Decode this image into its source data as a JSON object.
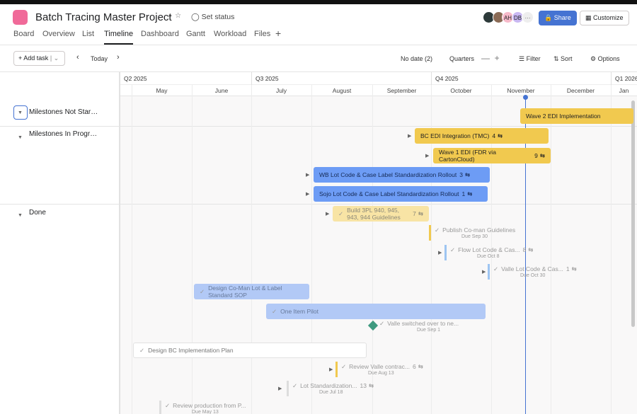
{
  "header": {
    "title": "Batch Tracing Master Project",
    "set_status": "Set status",
    "avatars": [
      "AH",
      "DB"
    ],
    "share": "Share",
    "customize": "Customize"
  },
  "tabs": [
    "Board",
    "Overview",
    "List",
    "Timeline",
    "Dashboard",
    "Gantt",
    "Workload",
    "Files"
  ],
  "toolbar": {
    "add_task": "Add task",
    "today": "Today",
    "no_date": "No date (2)",
    "quarters": "Quarters",
    "filter": "Filter",
    "sort": "Sort",
    "options": "Options"
  },
  "timeline": {
    "quarters": [
      "Q2 2025",
      "Q3 2025",
      "Q4 2025",
      "Q1 2026"
    ],
    "months": [
      "May",
      "June",
      "July",
      "August",
      "September",
      "October",
      "November",
      "December",
      "Jan"
    ]
  },
  "sections": [
    "Milestones Not Started",
    "Milestones In Progress",
    "Done"
  ],
  "tasks": [
    {
      "name": "Wave 2 EDI Implementation"
    },
    {
      "name": "BC EDI Integration (TMC)",
      "subtasks": 4
    },
    {
      "name": "Wave 1 EDI (FDR via CartonCloud)",
      "subtasks": 9
    },
    {
      "name": "WB Lot Code & Case Label Standardization Rollout",
      "subtasks": 3
    },
    {
      "name": "Sojo Lot Code & Case Label Standardization Rollout",
      "subtasks": 1
    },
    {
      "name": "Build 3PL 940, 945, 943, 944 Guidelines",
      "subtasks": 7
    },
    {
      "name": "Publish Co-man Guidelines",
      "due": "Due Sep 30"
    },
    {
      "name": "Flow Lot Code & Cas...",
      "subtasks": 8,
      "due": "Due Oct 8"
    },
    {
      "name": "Valle Lot Code & Cas...",
      "subtasks": 1,
      "due": "Due Oct 30"
    },
    {
      "name": "Design Co-Man Lot & Label Standard SOP"
    },
    {
      "name": "One Item Pilot"
    },
    {
      "name": "Valle switched over to ne...",
      "due": "Due Sep 1"
    },
    {
      "name": "Design BC Implementation Plan"
    },
    {
      "name": "Review Valle contrac...",
      "subtasks": 6,
      "due": "Due Aug 13"
    },
    {
      "name": "Lot Standardization...",
      "subtasks": 13,
      "due": "Due Jul 18"
    },
    {
      "name": "Review production from P...",
      "due": "Due May 13"
    }
  ]
}
